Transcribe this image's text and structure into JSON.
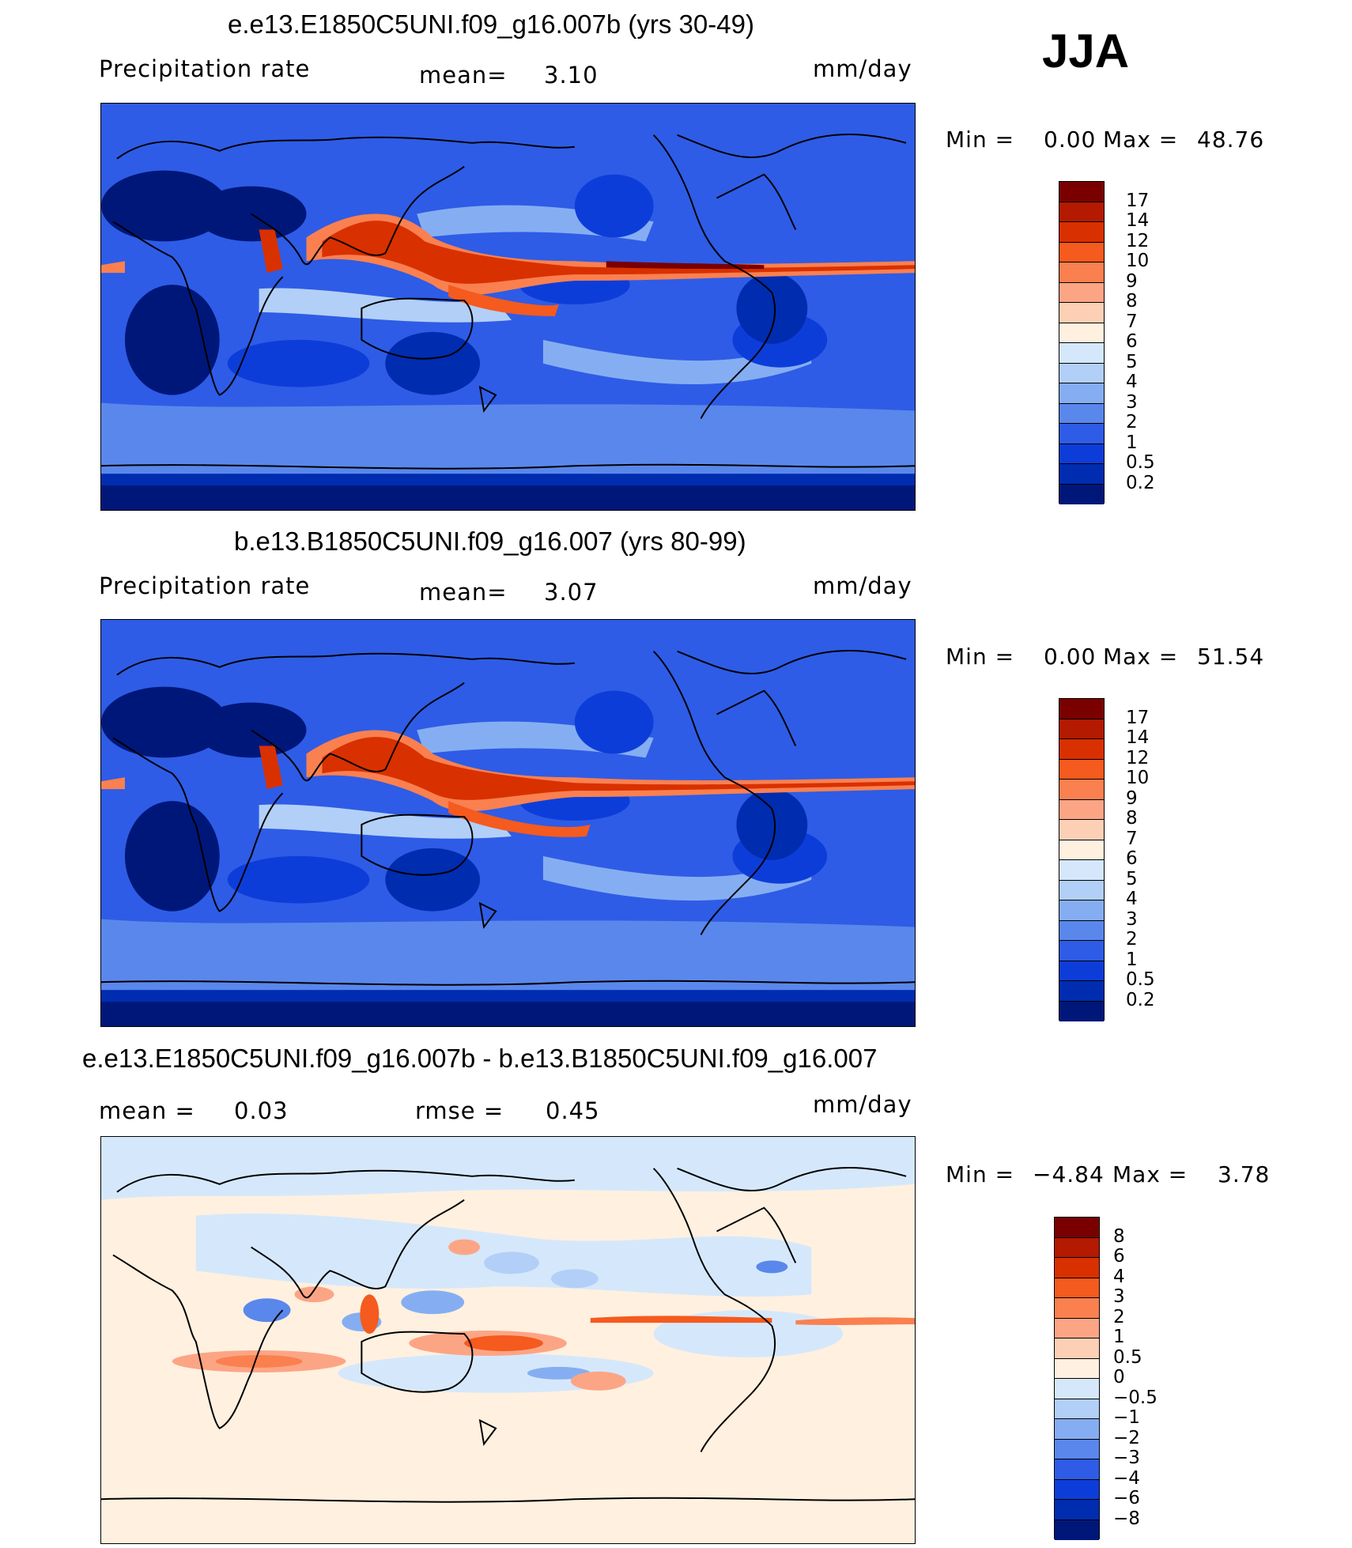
{
  "season": "JJA",
  "units": "mm/day",
  "land_color": "#000000",
  "panels": [
    {
      "title": "e.e13.E1850C5UNI.f09_g16.007b (yrs 30-49)",
      "variable": "Precipitation rate",
      "stat_label": "mean=",
      "stat_value": "3.10",
      "units": "mm/day",
      "min_label": "Min =",
      "min_value": "0.00",
      "max_label": "Max =",
      "max_value": "48.76",
      "levels": [
        "17",
        "14",
        "12",
        "10",
        "9",
        "8",
        "7",
        "6",
        "5",
        "4",
        "3",
        "2",
        "1",
        "0.5",
        "0.2"
      ],
      "colors": [
        "#7a0000",
        "#b31a00",
        "#d93000",
        "#f55a1e",
        "#fa8050",
        "#fca585",
        "#fdd0b5",
        "#fff0e0",
        "#d5e8fb",
        "#b2cff7",
        "#85aef2",
        "#5a87eb",
        "#2e5ce6",
        "#0d3dd9",
        "#002cb0",
        "#00177a"
      ]
    },
    {
      "title": "b.e13.B1850C5UNI.f09_g16.007 (yrs 80-99)",
      "variable": "Precipitation rate",
      "stat_label": "mean=",
      "stat_value": "3.07",
      "units": "mm/day",
      "min_label": "Min =",
      "min_value": "0.00",
      "max_label": "Max =",
      "max_value": "51.54",
      "levels": [
        "17",
        "14",
        "12",
        "10",
        "9",
        "8",
        "7",
        "6",
        "5",
        "4",
        "3",
        "2",
        "1",
        "0.5",
        "0.2"
      ],
      "colors": [
        "#7a0000",
        "#b31a00",
        "#d93000",
        "#f55a1e",
        "#fa8050",
        "#fca585",
        "#fdd0b5",
        "#fff0e0",
        "#d5e8fb",
        "#b2cff7",
        "#85aef2",
        "#5a87eb",
        "#2e5ce6",
        "#0d3dd9",
        "#002cb0",
        "#00177a"
      ]
    },
    {
      "title": "e.e13.E1850C5UNI.f09_g16.007b - b.e13.B1850C5UNI.f09_g16.007",
      "mean_label": "mean =",
      "mean_value": "0.03",
      "stat_label": "rmse =",
      "stat_value": "0.45",
      "units": "mm/day",
      "min_label": "Min =",
      "min_value": "−4.84",
      "max_label": "Max =",
      "max_value": "3.78",
      "levels": [
        "8",
        "6",
        "4",
        "3",
        "2",
        "1",
        "0.5",
        "0",
        "−0.5",
        "−1",
        "−2",
        "−3",
        "−4",
        "−6",
        "−8"
      ],
      "colors": [
        "#7a0000",
        "#b31a00",
        "#d93000",
        "#f55a1e",
        "#fa8050",
        "#fca585",
        "#fdd0b5",
        "#fff0e0",
        "#d5e8fb",
        "#b2cff7",
        "#85aef2",
        "#5a87eb",
        "#2e5ce6",
        "#0d3dd9",
        "#002cb0",
        "#00177a"
      ]
    }
  ]
}
